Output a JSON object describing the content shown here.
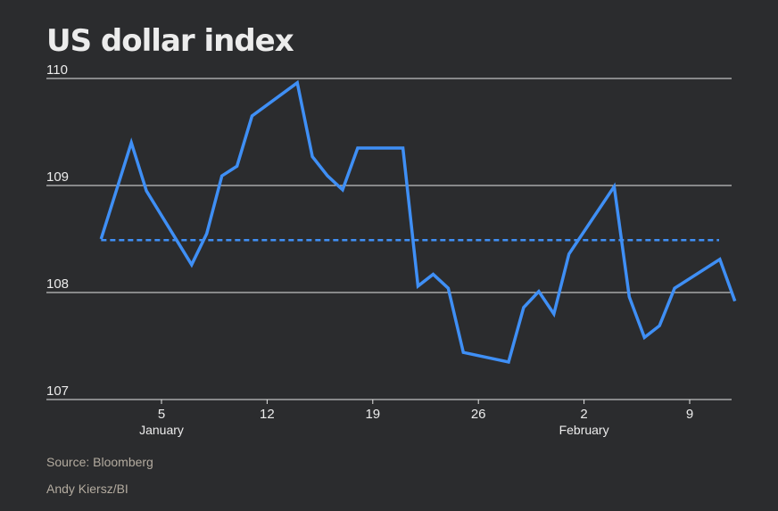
{
  "chart_data": {
    "type": "line",
    "title": "US dollar index",
    "xlabel": "",
    "ylabel": "",
    "ylim": [
      107,
      110
    ],
    "yticks": [
      "110",
      "109",
      "108",
      "107"
    ],
    "xticks": [
      {
        "day": 5,
        "label": "5",
        "sublabel": "January"
      },
      {
        "day": 12,
        "label": "12",
        "sublabel": ""
      },
      {
        "day": 19,
        "label": "19",
        "sublabel": ""
      },
      {
        "day": 26,
        "label": "26",
        "sublabel": ""
      },
      {
        "day": 33,
        "label": "2",
        "sublabel": "February"
      },
      {
        "day": 40,
        "label": "9",
        "sublabel": ""
      }
    ],
    "grid": "horizontal",
    "reference_line": {
      "value": 108.49,
      "style": "dashed"
    },
    "series": [
      {
        "color": "#3f8ff5",
        "points": [
          {
            "day": 1,
            "value": 108.5
          },
          {
            "day": 2,
            "value": 108.95
          },
          {
            "day": 3,
            "value": 109.4
          },
          {
            "day": 4,
            "value": 108.95
          },
          {
            "day": 7,
            "value": 108.26
          },
          {
            "day": 8,
            "value": 108.55
          },
          {
            "day": 9,
            "value": 109.09
          },
          {
            "day": 10,
            "value": 109.18
          },
          {
            "day": 11,
            "value": 109.65
          },
          {
            "day": 14,
            "value": 109.96
          },
          {
            "day": 15,
            "value": 109.27
          },
          {
            "day": 16,
            "value": 109.09
          },
          {
            "day": 17,
            "value": 108.96
          },
          {
            "day": 18,
            "value": 109.35
          },
          {
            "day": 21,
            "value": 109.35
          },
          {
            "day": 22,
            "value": 108.06
          },
          {
            "day": 23,
            "value": 108.17
          },
          {
            "day": 24,
            "value": 108.04
          },
          {
            "day": 25,
            "value": 107.44
          },
          {
            "day": 28,
            "value": 107.35
          },
          {
            "day": 29,
            "value": 107.86
          },
          {
            "day": 30,
            "value": 108.01
          },
          {
            "day": 31,
            "value": 107.8
          },
          {
            "day": 32,
            "value": 108.36
          },
          {
            "day": 35,
            "value": 108.99
          },
          {
            "day": 36,
            "value": 107.96
          },
          {
            "day": 37,
            "value": 107.58
          },
          {
            "day": 38,
            "value": 107.69
          },
          {
            "day": 39,
            "value": 108.04
          },
          {
            "day": 42,
            "value": 108.31
          },
          {
            "day": 43,
            "value": 107.92
          }
        ]
      }
    ]
  },
  "footer": {
    "source": "Source: Bloomberg",
    "credit": "Andy Kiersz/BI"
  },
  "colors": {
    "background": "#2b2c2e",
    "line": "#3f8ff5",
    "grid": "#e6e6e6",
    "text": "#ececec",
    "muted": "#b3ab9f"
  }
}
